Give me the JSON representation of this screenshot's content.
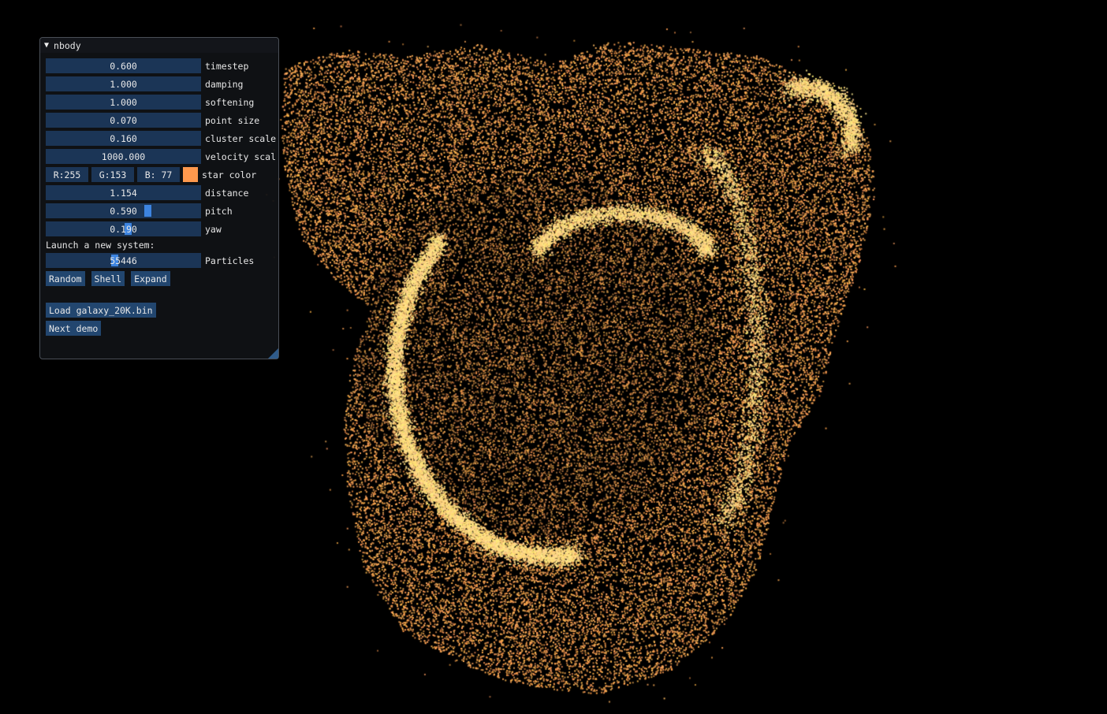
{
  "window": {
    "title": "nbody"
  },
  "params": [
    {
      "name": "timestep",
      "value": "0.600"
    },
    {
      "name": "damping",
      "value": "1.000"
    },
    {
      "name": "softening",
      "value": "1.000"
    },
    {
      "name": "point size",
      "value": "0.070"
    },
    {
      "name": "cluster scale",
      "value": "0.160"
    },
    {
      "name": "velocity scal",
      "value": "1000.000"
    }
  ],
  "star_color": {
    "label": "star color",
    "r": "R:255",
    "g": "G:153",
    "b": "B: 77",
    "hex": "#ff994d"
  },
  "camera": [
    {
      "name": "distance",
      "value": "1.154",
      "slider_fraction": null
    },
    {
      "name": "pitch",
      "value": "0.590",
      "slider_fraction": 0.67
    },
    {
      "name": "yaw",
      "value": "0.190",
      "slider_fraction": 0.53
    }
  ],
  "launch": {
    "heading": "Launch a new system:",
    "particles_label": "Particles",
    "particles_value": "55446",
    "particles_fraction": 0.44,
    "buttons": [
      "Random",
      "Shell",
      "Expand"
    ]
  },
  "actions": {
    "load": "Load galaxy_20K.bin",
    "next": "Next demo"
  },
  "colors": {
    "star": "#ff994d",
    "slider_bg": "#1b3556",
    "button_bg": "#22466f",
    "grab": "#3d84e0"
  }
}
